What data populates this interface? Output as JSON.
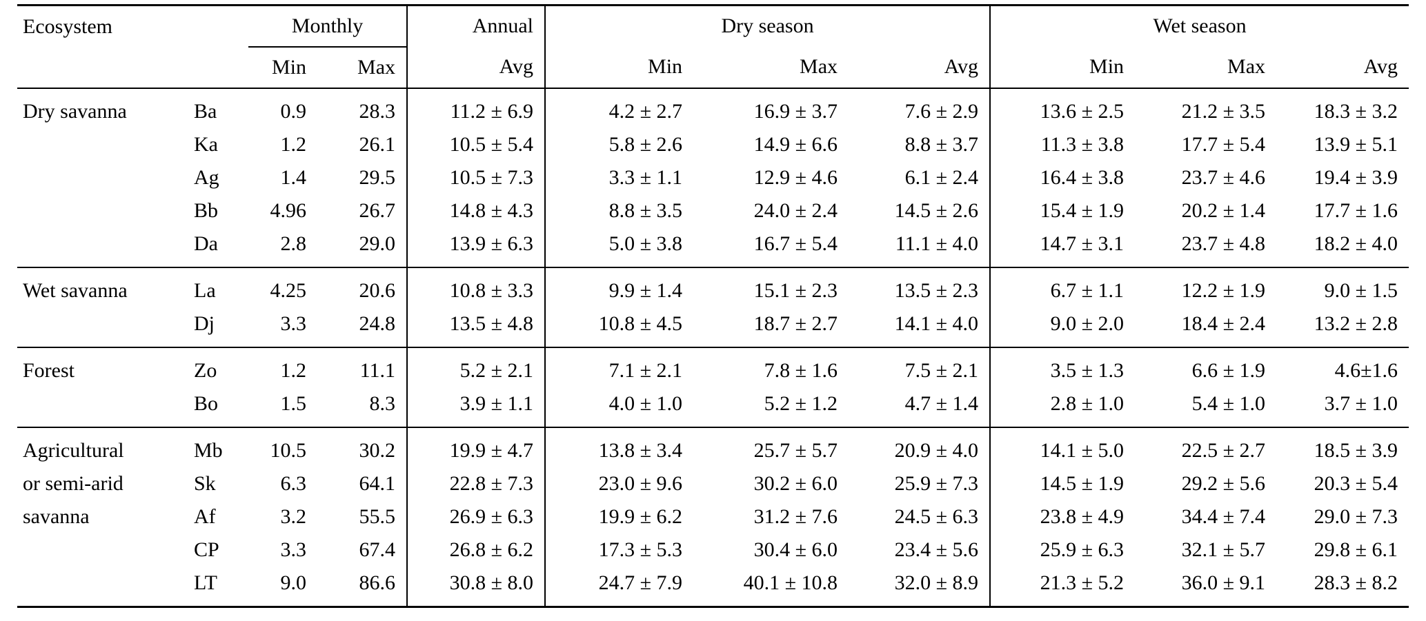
{
  "table": {
    "header": {
      "ecosystem_label": "Ecosystem",
      "col_groups": [
        {
          "label": "Monthly",
          "subcols": [
            "Min",
            "Max"
          ]
        },
        {
          "label": "Annual",
          "subcols": [
            "Avg"
          ]
        },
        {
          "label": "Dry season",
          "subcols": [
            "Min",
            "Max",
            "Avg"
          ]
        },
        {
          "label": "Wet season",
          "subcols": [
            "Min",
            "Max",
            "Avg"
          ]
        }
      ]
    },
    "groups": [
      {
        "name": "Dry savanna",
        "rows": [
          {
            "site": "Ba",
            "values": [
              "0.9",
              "28.3",
              "11.2 ± 6.9",
              "4.2 ± 2.7",
              "16.9 ± 3.7",
              "7.6 ± 2.9",
              "13.6 ± 2.5",
              "21.2 ± 3.5",
              "18.3 ± 3.2"
            ]
          },
          {
            "site": "Ka",
            "values": [
              "1.2",
              "26.1",
              "10.5 ± 5.4",
              "5.8 ± 2.6",
              "14.9 ± 6.6",
              "8.8 ± 3.7",
              "11.3 ± 3.8",
              "17.7 ± 5.4",
              "13.9 ± 5.1"
            ]
          },
          {
            "site": "Ag",
            "values": [
              "1.4",
              "29.5",
              "10.5 ± 7.3",
              "3.3 ± 1.1",
              "12.9 ± 4.6",
              "6.1 ± 2.4",
              "16.4 ± 3.8",
              "23.7 ± 4.6",
              "19.4 ± 3.9"
            ]
          },
          {
            "site": "Bb",
            "values": [
              "4.96",
              "26.7",
              "14.8 ± 4.3",
              "8.8 ± 3.5",
              "24.0 ± 2.4",
              "14.5 ± 2.6",
              "15.4 ± 1.9",
              "20.2 ± 1.4",
              "17.7 ± 1.6"
            ]
          },
          {
            "site": "Da",
            "values": [
              "2.8",
              "29.0",
              "13.9 ± 6.3",
              "5.0 ± 3.8",
              "16.7 ± 5.4",
              "11.1 ± 4.0",
              "14.7 ± 3.1",
              "23.7 ± 4.8",
              "18.2 ± 4.0"
            ]
          }
        ]
      },
      {
        "name": "Wet savanna",
        "rows": [
          {
            "site": "La",
            "values": [
              "4.25",
              "20.6",
              "10.8 ± 3.3",
              "9.9 ± 1.4",
              "15.1 ± 2.3",
              "13.5 ± 2.3",
              "6.7 ± 1.1",
              "12.2 ± 1.9",
              "9.0 ± 1.5"
            ]
          },
          {
            "site": "Dj",
            "values": [
              "3.3",
              "24.8",
              "13.5 ± 4.8",
              "10.8 ± 4.5",
              "18.7 ± 2.7",
              "14.1 ± 4.0",
              "9.0 ± 2.0",
              "18.4 ± 2.4",
              "13.2 ± 2.8"
            ]
          }
        ]
      },
      {
        "name": "Forest",
        "rows": [
          {
            "site": "Zo",
            "values": [
              "1.2",
              "11.1",
              "5.2 ± 2.1",
              "7.1 ± 2.1",
              "7.8 ± 1.6",
              "7.5 ± 2.1",
              "3.5 ± 1.3",
              "6.6 ± 1.9",
              "4.6±1.6"
            ]
          },
          {
            "site": "Bo",
            "values": [
              "1.5",
              "8.3",
              "3.9 ± 1.1",
              "4.0 ± 1.0",
              "5.2 ± 1.2",
              "4.7 ± 1.4",
              "2.8 ± 1.0",
              "5.4 ± 1.0",
              "3.7 ± 1.0"
            ]
          }
        ]
      },
      {
        "name": "Agricultural or semi-arid savanna",
        "rows": [
          {
            "site": "Mb",
            "values": [
              "10.5",
              "30.2",
              "19.9 ± 4.7",
              "13.8 ± 3.4",
              "25.7 ± 5.7",
              "20.9 ± 4.0",
              "14.1 ± 5.0",
              "22.5 ± 2.7",
              "18.5 ± 3.9"
            ]
          },
          {
            "site": "Sk",
            "values": [
              "6.3",
              "64.1",
              "22.8 ± 7.3",
              "23.0 ± 9.6",
              "30.2 ± 6.0",
              "25.9 ± 7.3",
              "14.5 ± 1.9",
              "29.2 ± 5.6",
              "20.3 ± 5.4"
            ]
          },
          {
            "site": "Af",
            "values": [
              "3.2",
              "55.5",
              "26.9 ± 6.3",
              "19.9 ± 6.2",
              "31.2 ± 7.6",
              "24.5 ± 6.3",
              "23.8 ± 4.9",
              "34.4 ± 7.4",
              "29.0 ± 7.3"
            ]
          },
          {
            "site": "CP",
            "values": [
              "3.3",
              "67.4",
              "26.8 ± 6.2",
              "17.3 ± 5.3",
              "30.4 ± 6.0",
              "23.4 ± 5.6",
              "25.9 ± 6.3",
              "32.1 ± 5.7",
              "29.8 ± 6.1"
            ]
          },
          {
            "site": "LT",
            "values": [
              "9.0",
              "86.6",
              "30.8 ± 8.0",
              "24.7 ± 7.9",
              "40.1 ± 10.8",
              "32.0 ± 8.9",
              "21.3 ± 5.2",
              "36.0 ± 9.1",
              "28.3 ± 8.2"
            ]
          }
        ]
      }
    ]
  }
}
